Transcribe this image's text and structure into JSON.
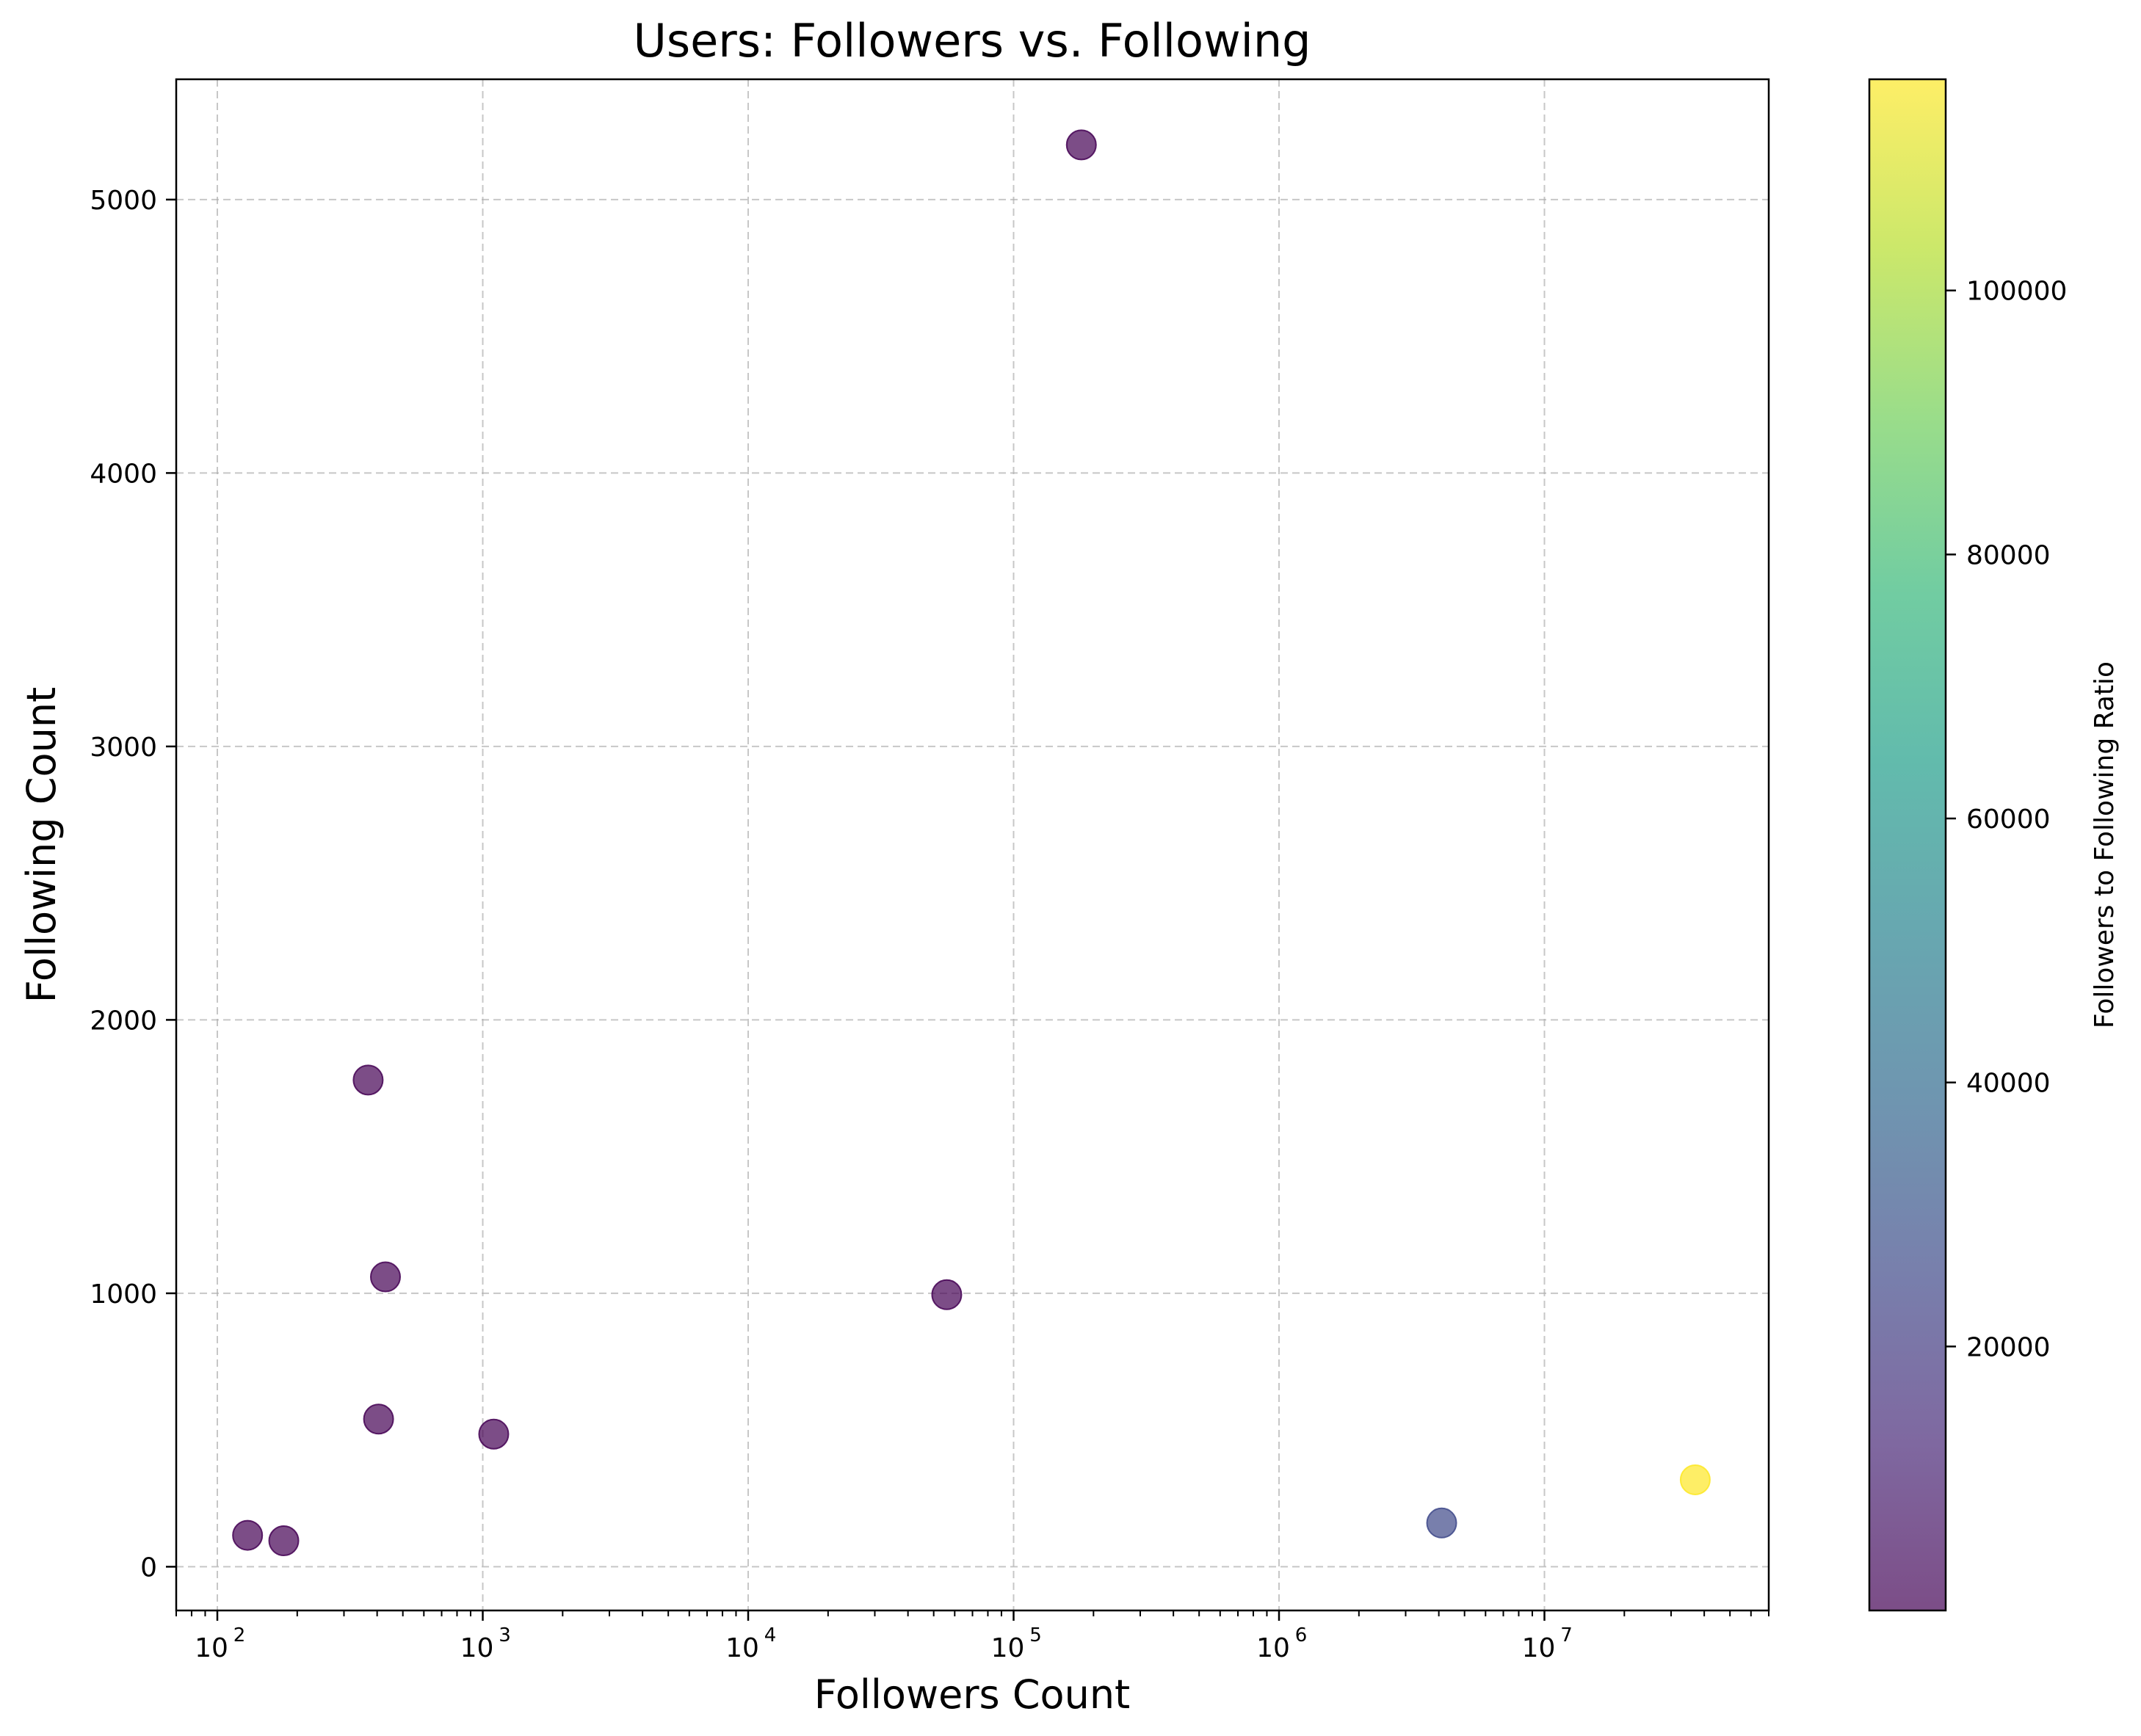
{
  "chart_data": {
    "type": "scatter",
    "title": "Users: Followers vs. Following",
    "xlabel": "Followers Count",
    "ylabel": "Following Count",
    "xscale": "log",
    "xlim": [
      70,
      70000000
    ],
    "ylim": [
      -160,
      5440
    ],
    "xticks": [
      {
        "value": 100,
        "base": "10",
        "exp": "2"
      },
      {
        "value": 1000,
        "base": "10",
        "exp": "3"
      },
      {
        "value": 10000,
        "base": "10",
        "exp": "4"
      },
      {
        "value": 100000,
        "base": "10",
        "exp": "5"
      },
      {
        "value": 1000000,
        "base": "10",
        "exp": "6"
      },
      {
        "value": 10000000,
        "base": "10",
        "exp": "7"
      }
    ],
    "yticks": [
      {
        "value": 0,
        "label": "0"
      },
      {
        "value": 1000,
        "label": "1000"
      },
      {
        "value": 2000,
        "label": "2000"
      },
      {
        "value": 3000,
        "label": "3000"
      },
      {
        "value": 4000,
        "label": "4000"
      },
      {
        "value": 5000,
        "label": "5000"
      }
    ],
    "grid": true,
    "points": [
      {
        "x": 130,
        "y": 115,
        "c": 1.1
      },
      {
        "x": 178,
        "y": 95,
        "c": 1.9
      },
      {
        "x": 370,
        "y": 1780,
        "c": 0.2
      },
      {
        "x": 405,
        "y": 540,
        "c": 0.75
      },
      {
        "x": 430,
        "y": 1060,
        "c": 0.4
      },
      {
        "x": 1100,
        "y": 485,
        "c": 2.3
      },
      {
        "x": 56000,
        "y": 995,
        "c": 56
      },
      {
        "x": 180000,
        "y": 5200,
        "c": 35
      },
      {
        "x": 4100000,
        "y": 160,
        "c": 25600
      },
      {
        "x": 37000000,
        "y": 318,
        "c": 116000
      }
    ],
    "colorbar": {
      "label": "Followers to Following Ratio",
      "colormap": "viridis",
      "alpha": 0.7,
      "min": 0.2,
      "max": 116000,
      "ticks": [
        {
          "value": 20000,
          "label": "20000"
        },
        {
          "value": 40000,
          "label": "40000"
        },
        {
          "value": 60000,
          "label": "60000"
        },
        {
          "value": 80000,
          "label": "80000"
        },
        {
          "value": 100000,
          "label": "100000"
        }
      ]
    },
    "colors": {
      "grid": "#b0b0b0",
      "axis": "#000000",
      "viridis": [
        "#440154",
        "#482878",
        "#3e4989",
        "#31688e",
        "#26828e",
        "#1f9e89",
        "#35b779",
        "#6ece58",
        "#b5de2b",
        "#fde725"
      ]
    }
  }
}
